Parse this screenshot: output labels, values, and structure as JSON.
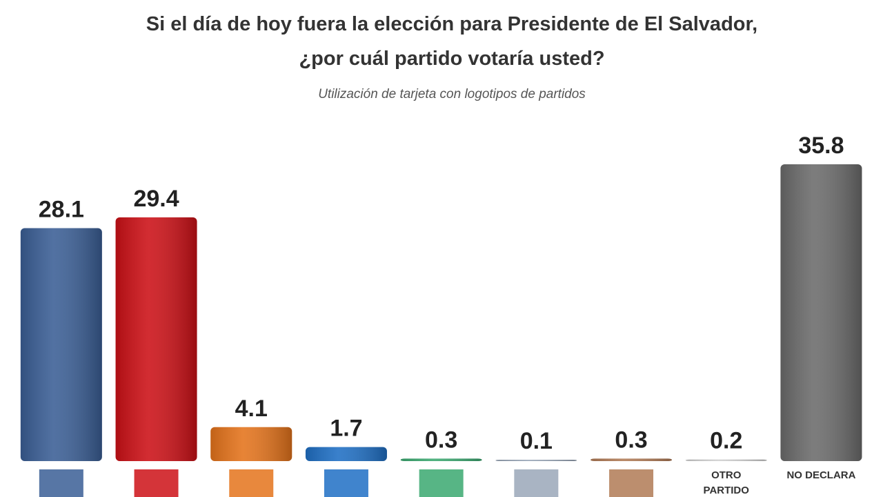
{
  "chart_data": {
    "type": "bar",
    "title": "Si el día de hoy fuera la elección para Presidente de El Salvador, ¿por cuál partido votaría usted?",
    "subtitle": "Utilización de tarjeta con logotipos de partidos",
    "categories": [
      null,
      null,
      null,
      null,
      null,
      null,
      null,
      "OTRO PARTIDO",
      "NO DECLARA"
    ],
    "values": [
      28.1,
      29.4,
      4.1,
      1.7,
      0.3,
      0.1,
      0.3,
      0.2,
      35.8
    ],
    "colors": [
      "#3a5e95",
      "#cc1016",
      "#e4731b",
      "#1f6fc4",
      "#3aa870",
      "#9aa7b8",
      "#b07a55",
      "#d0d0d0",
      "#6b6b6b"
    ]
  }
}
